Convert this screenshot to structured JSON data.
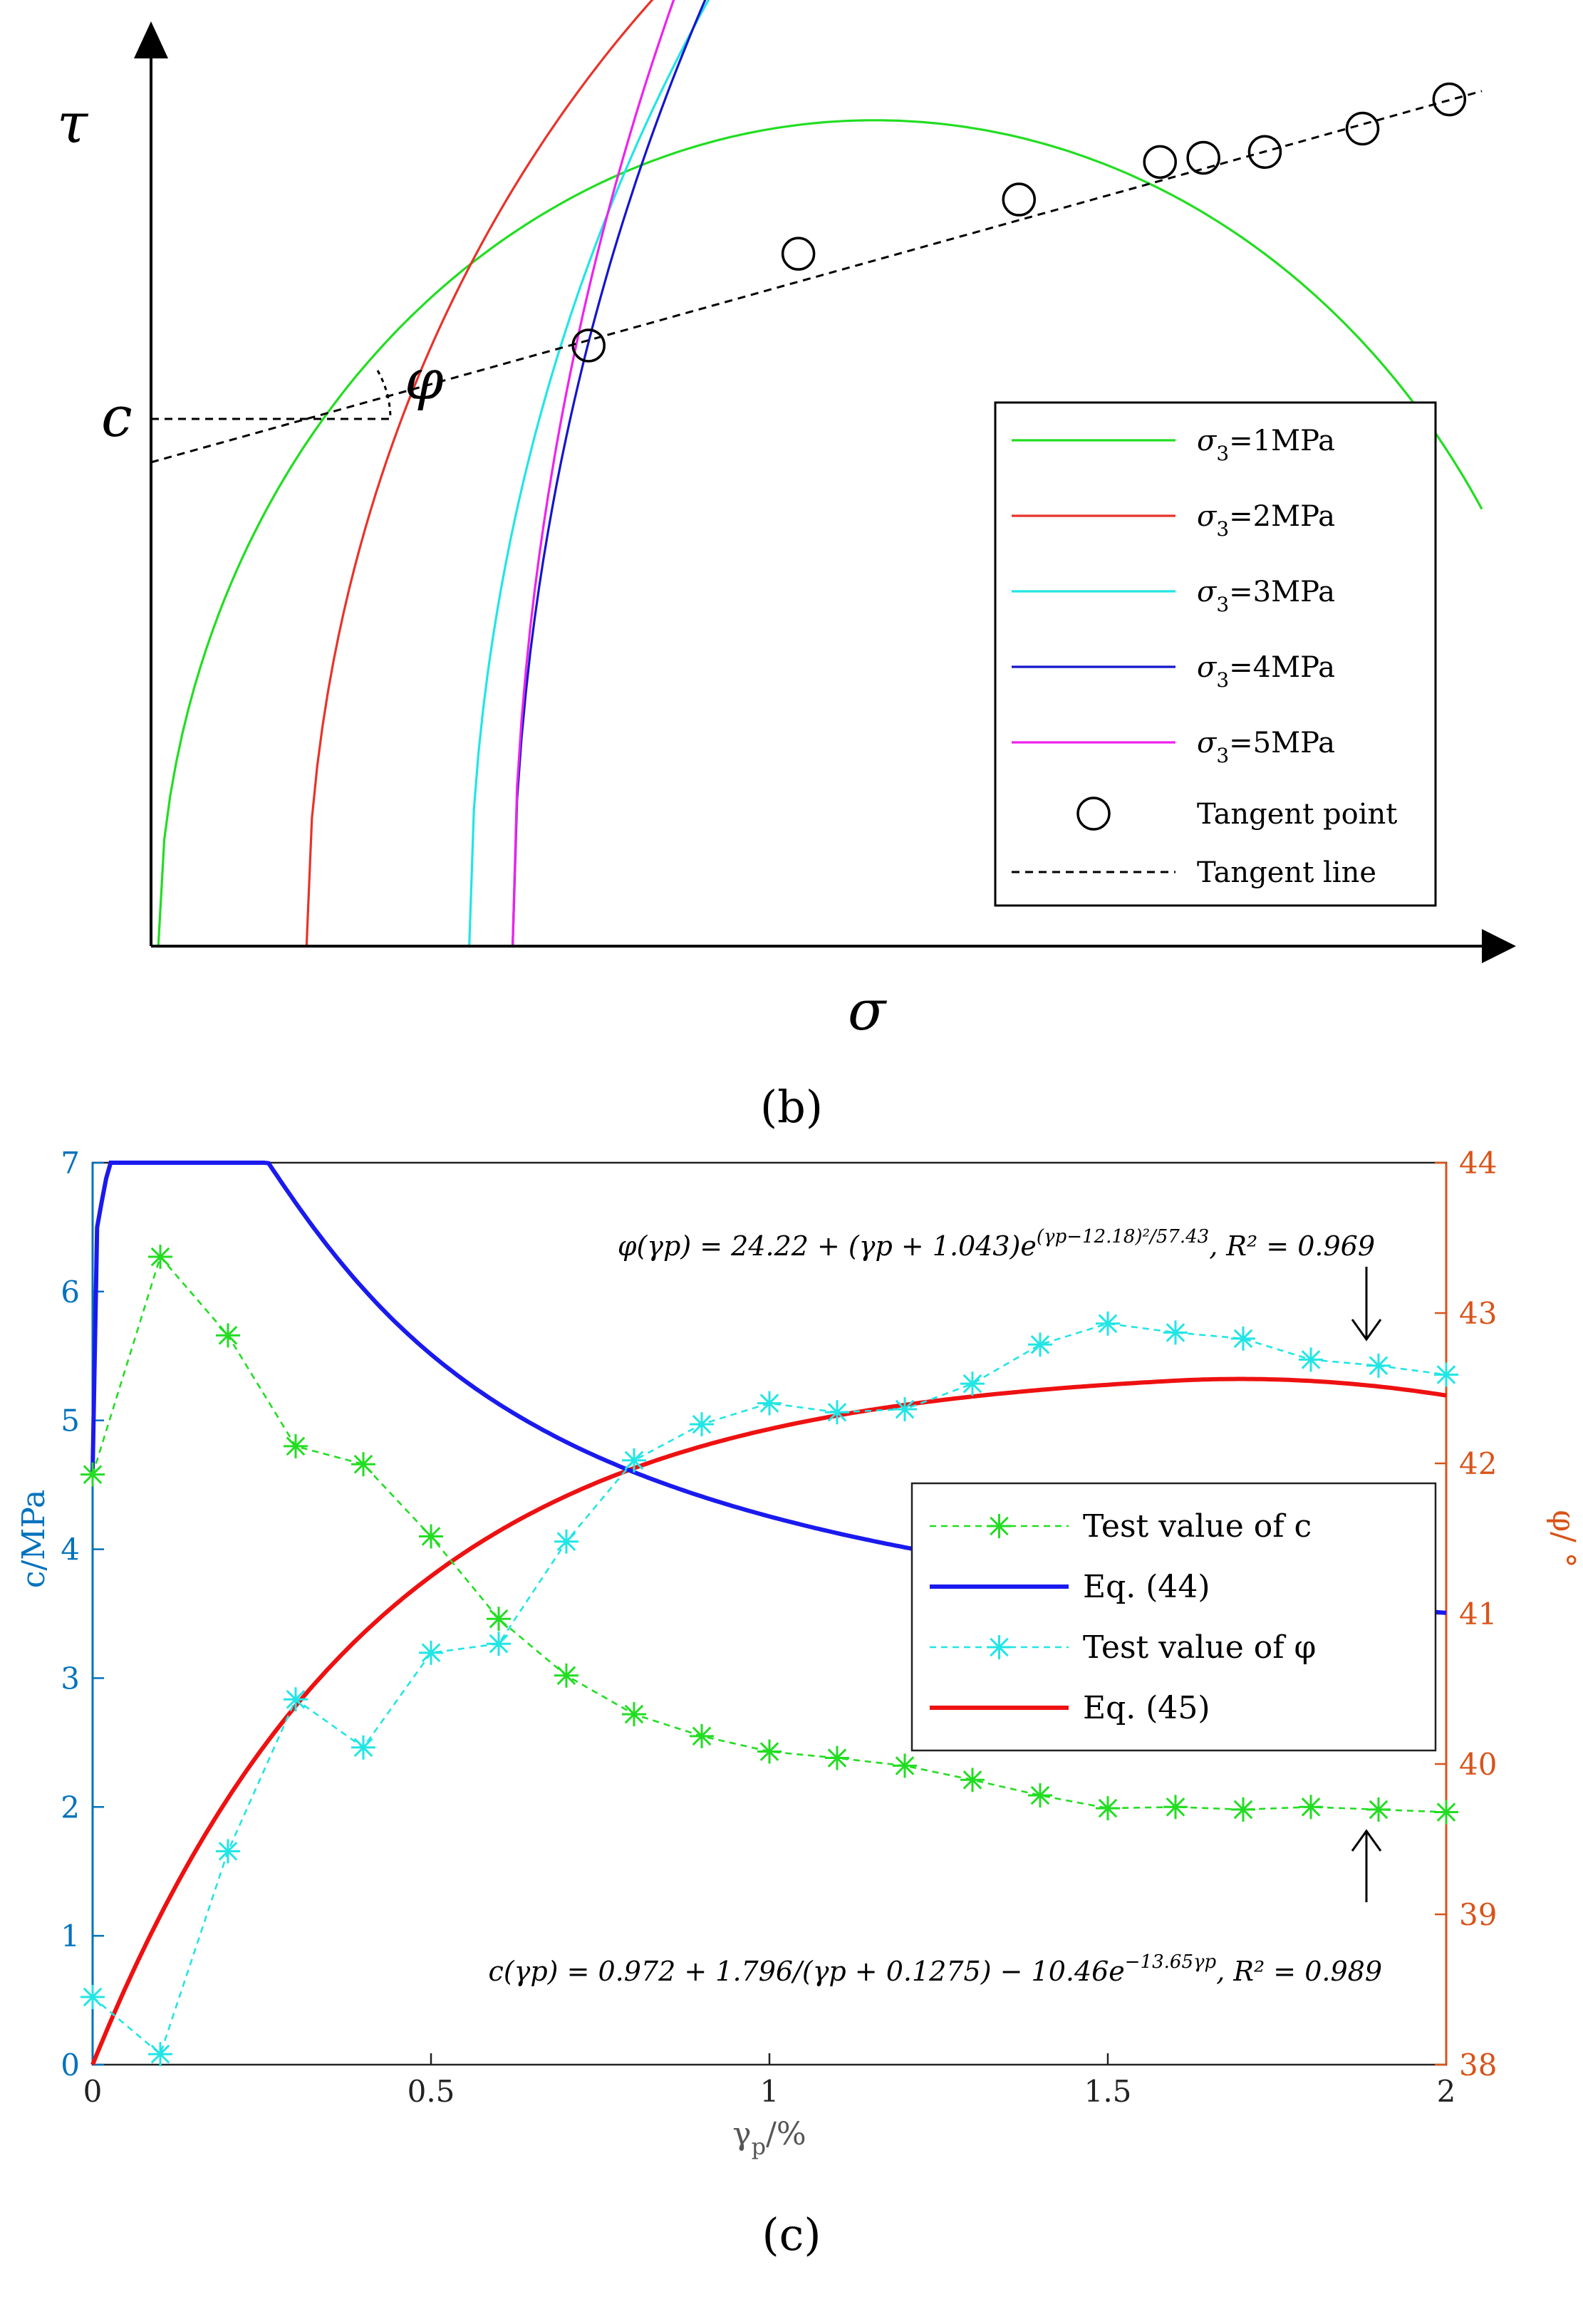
{
  "chart_data": [
    {
      "type": "line",
      "panel_label": "(b)",
      "title": "",
      "xlabel": "σ",
      "ylabel": "τ",
      "annotations": {
        "intercept": "c",
        "angle": "φ"
      },
      "series": [
        {
          "name": "σ3=1MPa",
          "sub": "3",
          "label_rest": "=1MPa",
          "color": "#22dd22",
          "circle": {
            "center": 1.0,
            "radius": 0.99
          }
        },
        {
          "name": "σ3=2MPa",
          "sub": "3",
          "label_rest": "=2MPa",
          "color": "#e8332a",
          "circle": {
            "center": 1.8,
            "radius": 1.585
          }
        },
        {
          "name": "σ3=3MPa",
          "sub": "3",
          "label_rest": "=3MPa",
          "color": "#22e5e5",
          "circle": {
            "center": 2.55,
            "radius": 2.11
          }
        },
        {
          "name": "σ3=4MPa",
          "sub": "3",
          "label_rest": "=4MPa",
          "color": "#1515cc",
          "circle": {
            "center": 3.05,
            "radius": 2.55
          }
        },
        {
          "name": "σ3=5MPa",
          "sub": "3",
          "label_rest": "=5MPa",
          "color": "#ee22ee",
          "circle": {
            "center": 3.5,
            "radius": 3.0
          }
        }
      ],
      "tangent_points": [
        {
          "x": 0.605,
          "y": 0.72
        },
        {
          "x": 0.895,
          "y": 0.83
        },
        {
          "x": 1.2,
          "y": 0.895
        },
        {
          "x": 1.395,
          "y": 0.94
        },
        {
          "x": 1.455,
          "y": 0.945
        },
        {
          "x": 1.54,
          "y": 0.952
        },
        {
          "x": 1.675,
          "y": 0.98
        },
        {
          "x": 1.795,
          "y": 1.015
        }
      ],
      "tangent_line": {
        "x": [
          0,
          1.84
        ],
        "y": [
          0.58,
          1.025
        ]
      },
      "legend": {
        "tangent_point": "Tangent point",
        "tangent_line": "Tangent line"
      },
      "xlim": [
        0,
        1.84
      ],
      "ylim": [
        0,
        1.1
      ]
    },
    {
      "type": "line",
      "panel_label": "(c)",
      "title": "",
      "xlabel": "γ",
      "xlabel_sub": "p",
      "xlabel_unit": "/%",
      "ylabel_left": "c/MPa",
      "ylabel_right": "φ/ °",
      "xlim": [
        0,
        2
      ],
      "ylim_left": [
        0,
        7
      ],
      "ylim_right": [
        38,
        44
      ],
      "x_ticks": [
        "0",
        "0.5",
        "1",
        "1.5",
        "2"
      ],
      "y_ticks_left": [
        "0",
        "1",
        "2",
        "3",
        "4",
        "5",
        "6",
        "7"
      ],
      "y_ticks_right": [
        "38",
        "39",
        "40",
        "41",
        "42",
        "43",
        "44"
      ],
      "left_axis_color": "#0072bd",
      "right_axis_color": "#d95319",
      "series": [
        {
          "name": "Test value of c",
          "axis": "left",
          "color": "#22dd22",
          "style": "dashed-star",
          "x": [
            0,
            0.1,
            0.2,
            0.3,
            0.4,
            0.5,
            0.6,
            0.7,
            0.8,
            0.9,
            1.0,
            1.1,
            1.2,
            1.3,
            1.4,
            1.5,
            1.6,
            1.7,
            1.8,
            1.9,
            2.0
          ],
          "y": [
            4.58,
            6.27,
            5.66,
            4.8,
            4.66,
            4.1,
            3.46,
            3.02,
            2.72,
            2.55,
            2.43,
            2.38,
            2.32,
            2.21,
            2.09,
            1.99,
            2.0,
            1.98,
            2.0,
            1.98,
            1.96
          ]
        },
        {
          "name": "Eq. (44)",
          "axis": "left",
          "color": "#1a1aee",
          "style": "solid",
          "formula": "c(γp) = 0.972 + 1.796/(γp + 0.1275) − 10.46e^(−13.65γp)"
        },
        {
          "name": "Test value of φ",
          "axis": "right",
          "color": "#22e5e5",
          "style": "dashed-star",
          "x": [
            0,
            0.1,
            0.2,
            0.3,
            0.4,
            0.5,
            0.6,
            0.7,
            0.8,
            0.9,
            1.0,
            1.1,
            1.2,
            1.3,
            1.4,
            1.5,
            1.6,
            1.7,
            1.8,
            1.9,
            2.0
          ],
          "y": [
            38.45,
            38.07,
            39.42,
            40.43,
            40.11,
            40.74,
            40.8,
            41.48,
            42.02,
            42.26,
            42.4,
            42.34,
            42.36,
            42.53,
            42.79,
            42.93,
            42.87,
            42.83,
            42.69,
            42.65,
            42.59
          ]
        },
        {
          "name": "Eq. (45)",
          "axis": "right",
          "color": "#ee1111",
          "style": "solid",
          "formula": "φ(γp) = 24.22 + (γp + 1.043)e^((γp−12.18)²/57.43)"
        }
      ],
      "annotations": [
        {
          "id": "phi",
          "lhs": "φ(γp) = 24.22 + (γp + 1.043)e",
          "exp": "(γp−12.18)²/57.43",
          "tail": ", R² = 0.969"
        },
        {
          "id": "c",
          "lhs": "c(γp) = 0.972 + 1.796/(γp + 0.1275) − 10.46e",
          "exp": "−13.65γp",
          "tail": ", R² = 0.989"
        }
      ]
    }
  ]
}
